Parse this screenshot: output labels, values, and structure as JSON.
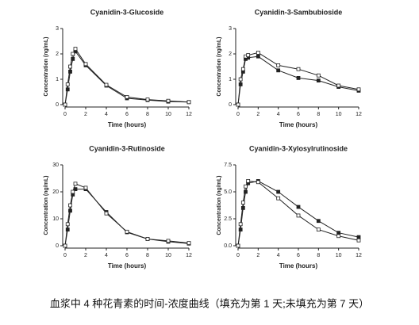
{
  "chart_data": [
    {
      "type": "line",
      "title": "Cyanidin-3-Glucoside",
      "x_label": "Time (hours)",
      "y_label": "Concentration (ng/mL)",
      "x": [
        0,
        0.25,
        0.5,
        0.75,
        1,
        2,
        4,
        6,
        8,
        10,
        12
      ],
      "xlim": [
        0,
        12
      ],
      "xticks": [
        0,
        2,
        4,
        6,
        8,
        10,
        12
      ],
      "ylim": [
        0,
        3
      ],
      "yticks": [
        0,
        1,
        2,
        3
      ],
      "series": [
        {
          "marker": "filled",
          "color": "#222222",
          "values": [
            0,
            0.6,
            1.3,
            1.8,
            2.1,
            1.55,
            0.75,
            0.25,
            0.18,
            0.12,
            0.1
          ]
        },
        {
          "marker": "open",
          "color": "#222222",
          "values": [
            0,
            0.8,
            1.5,
            2.0,
            2.2,
            1.6,
            0.78,
            0.3,
            0.2,
            0.15,
            0.1
          ]
        }
      ]
    },
    {
      "type": "line",
      "title": "Cyanidin-3-Sambubioside",
      "x_label": "Time (hours)",
      "y_label": "Concentration (ng/mL)",
      "x": [
        0,
        0.25,
        0.5,
        0.75,
        1,
        2,
        4,
        6,
        8,
        10,
        12
      ],
      "xlim": [
        0,
        12
      ],
      "xticks": [
        0,
        2,
        4,
        6,
        8,
        10,
        12
      ],
      "ylim": [
        0,
        3
      ],
      "yticks": [
        0,
        1,
        2,
        3
      ],
      "series": [
        {
          "marker": "filled",
          "color": "#222222",
          "values": [
            0,
            0.8,
            1.3,
            1.8,
            1.85,
            1.9,
            1.35,
            1.05,
            0.95,
            0.7,
            0.55
          ]
        },
        {
          "marker": "open",
          "color": "#222222",
          "values": [
            0,
            1.0,
            1.4,
            1.9,
            1.95,
            2.05,
            1.55,
            1.4,
            1.15,
            0.75,
            0.6
          ]
        }
      ]
    },
    {
      "type": "line",
      "title": "Cyanidin-3-Rutinoside",
      "x_label": "Time (hours)",
      "y_label": "Concentration (ng/mL)",
      "x": [
        0,
        0.25,
        0.5,
        0.75,
        1,
        2,
        4,
        6,
        8,
        10,
        12
      ],
      "xlim": [
        0,
        12
      ],
      "xticks": [
        0,
        2,
        4,
        6,
        8,
        10,
        12
      ],
      "ylim": [
        0,
        30
      ],
      "yticks": [
        0,
        10,
        20,
        30
      ],
      "series": [
        {
          "marker": "filled",
          "color": "#222222",
          "values": [
            0,
            6,
            13,
            19,
            21,
            21,
            12.5,
            5,
            2.5,
            1.5,
            0.8
          ]
        },
        {
          "marker": "open",
          "color": "#222222",
          "values": [
            0,
            8,
            15,
            20,
            23,
            21.5,
            12,
            5.2,
            2.5,
            1.8,
            1.0
          ]
        }
      ]
    },
    {
      "type": "line",
      "title": "Cyanidin-3-Xylosylrutinoside",
      "x_label": "Time (hours)",
      "y_label": "Concentration (ng/mL)",
      "x": [
        0,
        0.25,
        0.5,
        0.75,
        1,
        2,
        4,
        6,
        8,
        10,
        12
      ],
      "xlim": [
        0,
        12
      ],
      "xticks": [
        0,
        2,
        4,
        6,
        8,
        10,
        12
      ],
      "ylim": [
        0,
        7.5
      ],
      "yticks": [
        {
          "value": 0,
          "label": "0.0"
        },
        {
          "value": 2.5,
          "label": "2.5"
        },
        {
          "value": 5,
          "label": "5.0"
        },
        {
          "value": 7.5,
          "label": "7.5"
        }
      ],
      "series": [
        {
          "marker": "filled",
          "color": "#222222",
          "values": [
            0,
            1.5,
            3.5,
            5.0,
            5.8,
            6.0,
            5.0,
            3.6,
            2.3,
            1.2,
            0.8
          ]
        },
        {
          "marker": "open",
          "color": "#222222",
          "values": [
            0,
            2.0,
            4.0,
            5.5,
            6.0,
            5.9,
            4.4,
            2.8,
            1.5,
            0.9,
            0.5
          ]
        }
      ]
    }
  ],
  "caption": "血浆中 4 种花青素的时间-浓度曲线（填充为第 1 天;未填充为第 7 天）"
}
